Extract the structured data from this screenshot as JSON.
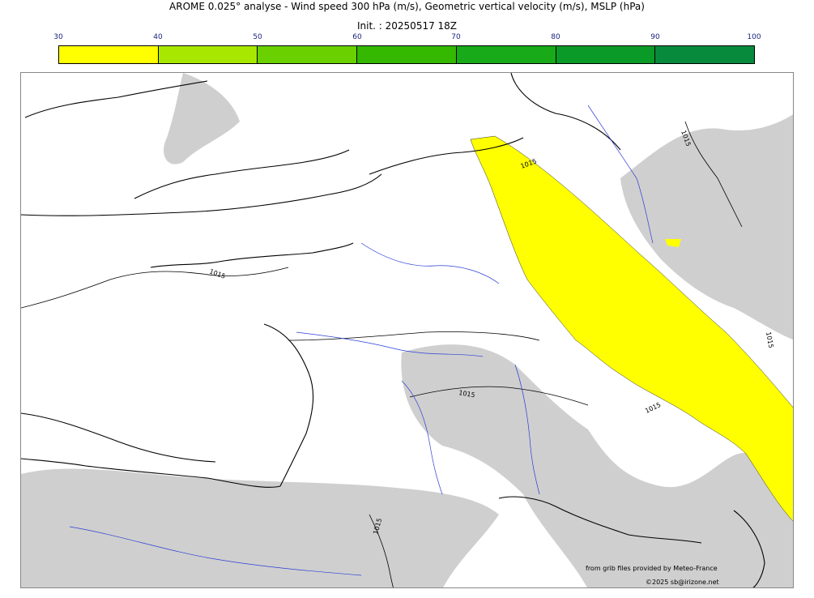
{
  "title": "AROME 0.025° analyse - Wind speed 300 hPa (m/s), Geometric vertical velocity (m/s), MSLP (hPa)",
  "subtitle": "Init. : 20250517 18Z",
  "colorbar": {
    "ticks": [
      "30",
      "40",
      "50",
      "60",
      "70",
      "80",
      "90",
      "100"
    ],
    "colors": [
      "#ffff00",
      "#a8e800",
      "#6ad000",
      "#34b800",
      "#18aa18",
      "#0a9a28",
      "#078a3c",
      "#077250"
    ]
  },
  "map": {
    "isobar_labels": [
      "1015",
      "1015",
      "1015",
      "1015",
      "1015",
      "1015",
      "1015"
    ],
    "colors": {
      "coast": "#000000",
      "rivers": "#2b3fd6",
      "uplift": "#cfcfcf",
      "jet": "#ffff00"
    }
  },
  "credits": {
    "source": "from grib files provided by Meteo-France",
    "copyright": "©2025 sb@irizone.net"
  }
}
